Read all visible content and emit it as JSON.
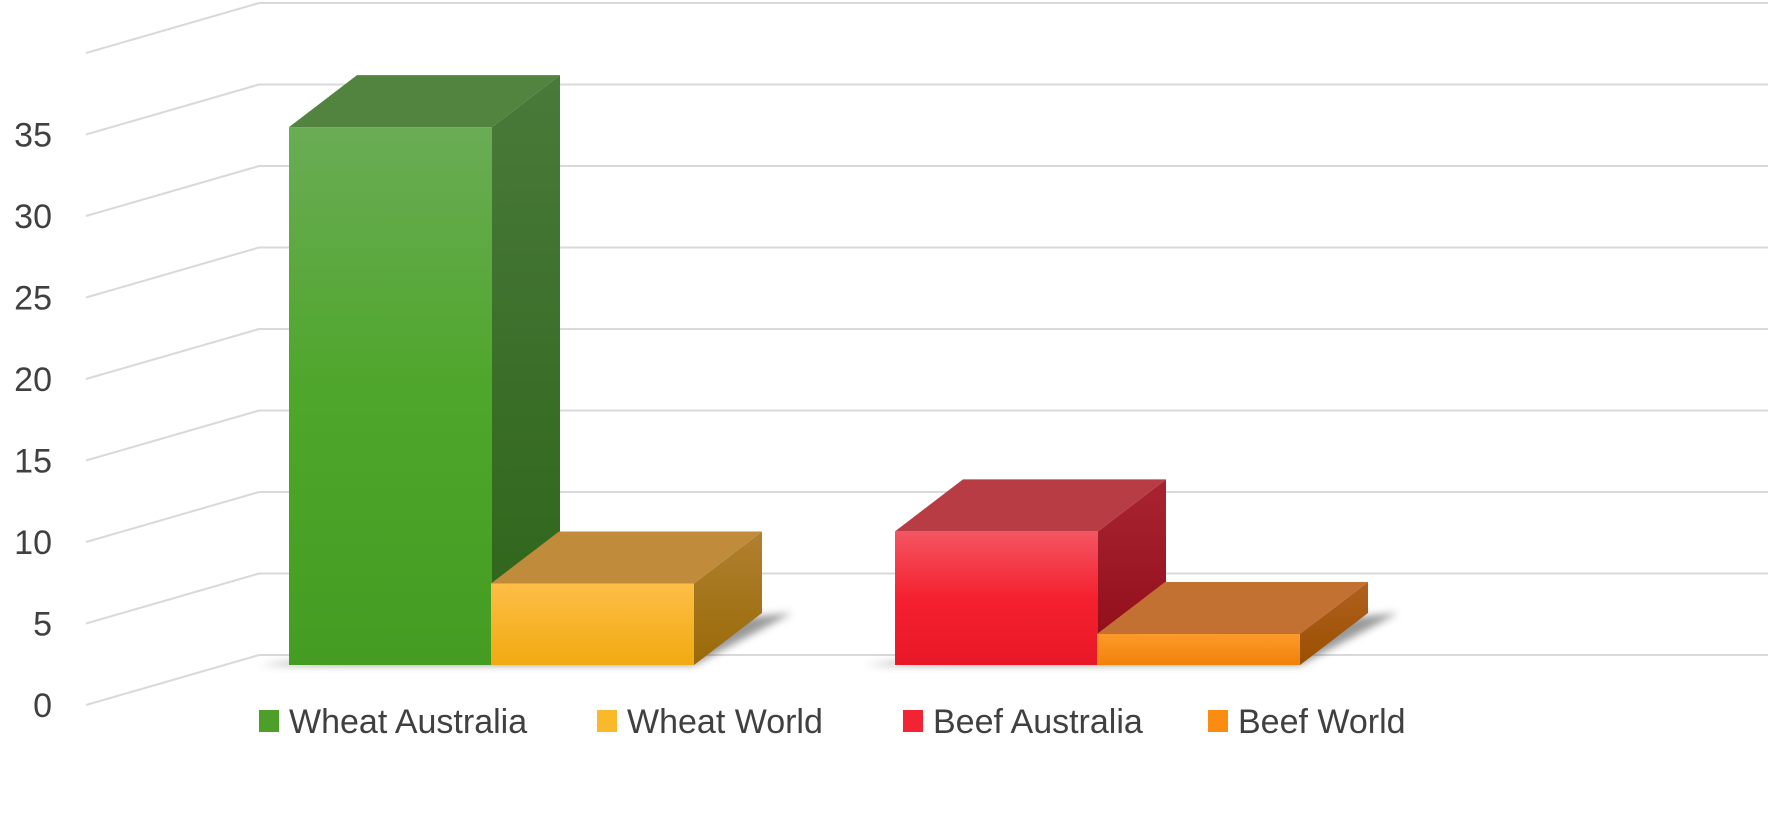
{
  "chart_data": {
    "type": "bar",
    "subtype": "3d-clustered-column",
    "title": "",
    "xlabel": "",
    "ylabel": "",
    "ylim": [
      0,
      40
    ],
    "y_ticks": [
      0,
      5,
      10,
      15,
      20,
      25,
      30,
      35
    ],
    "grid": true,
    "legend_position": "bottom",
    "categories": [
      "",
      ""
    ],
    "series": [
      {
        "name": "Wheat Australia",
        "values": [
          33.0,
          null
        ],
        "color": "#4e9f2a",
        "icon": "legend-swatch"
      },
      {
        "name": "Wheat World",
        "values": [
          5.0,
          null
        ],
        "color": "#fbb82b",
        "icon": "legend-swatch"
      },
      {
        "name": "Beef Australia",
        "values": [
          null,
          8.2
        ],
        "color": "#f22434",
        "icon": "legend-swatch"
      },
      {
        "name": "Beef World",
        "values": [
          null,
          1.9
        ],
        "color": "#fb8c12",
        "icon": "legend-swatch"
      }
    ]
  }
}
